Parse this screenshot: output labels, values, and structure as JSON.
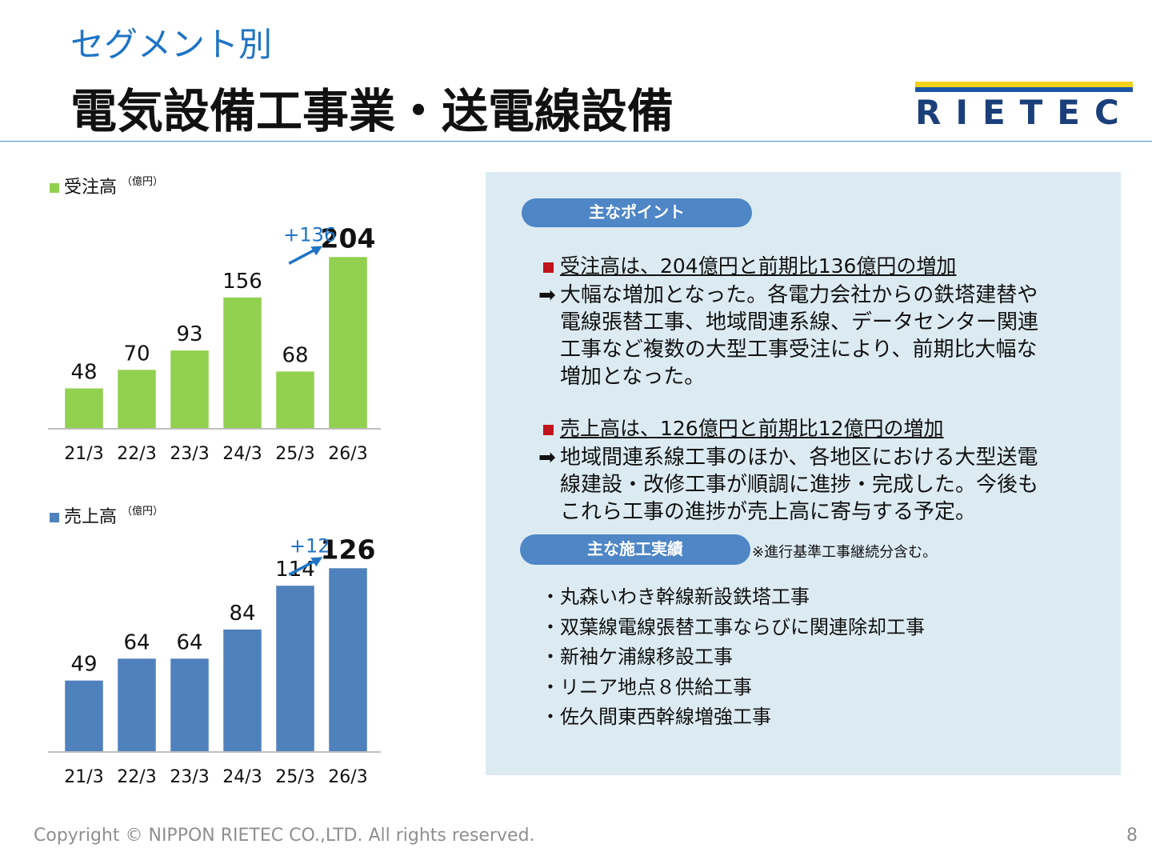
{
  "header": {
    "subtitle": "セグメント別",
    "title": "電気設備工事業・送電線設備",
    "logo_text": "RIETEC"
  },
  "colors": {
    "orders_bar": "#92d050",
    "sales_bar": "#4f81bd",
    "accent_blue": "#1f74c6",
    "pill": "#4e86c6",
    "panel_bg": "#dcebf2",
    "point_mark": "#c0131b",
    "logo_yellow": "#f2d21b",
    "logo_blue": "#1d55a5"
  },
  "chart_data": [
    {
      "type": "bar",
      "legend": "受注高",
      "unit": "（億円）",
      "categories": [
        "21/3",
        "22/3",
        "23/3",
        "24/3",
        "25/3",
        "26/3"
      ],
      "values": [
        48,
        70,
        93,
        156,
        68,
        204
      ],
      "ylim": [
        0,
        210
      ],
      "delta_label": "+136",
      "highlight_last": true
    },
    {
      "type": "bar",
      "legend": "売上高",
      "unit": "（億円）",
      "categories": [
        "21/3",
        "22/3",
        "23/3",
        "24/3",
        "25/3",
        "26/3"
      ],
      "values": [
        49,
        64,
        64,
        84,
        114,
        126
      ],
      "ylim": [
        0,
        130
      ],
      "delta_label": "+12",
      "highlight_last": true
    }
  ],
  "panel": {
    "points_label": "主なポイント",
    "point1": {
      "heading": "受注高は、204億円と前期比136億円の増加",
      "arrow": "➡",
      "lines": [
        "大幅な増加となった。各電力会社からの鉄塔建替や",
        "電線張替工事、地域間連系線、データセンター関連",
        "工事など複数の大型工事受注により、前期比大幅な",
        "増加となった。"
      ]
    },
    "point2": {
      "heading": "売上高は、126億円と前期比12億円の増加",
      "arrow": "➡",
      "lines": [
        "地域間連系線工事のほか、各地区における大型送電",
        "線建設・改修工事が順調に進捗・完成した。今後も",
        "これら工事の進捗が売上高に寄与する予定。"
      ]
    },
    "works_label": "主な施工実績",
    "works_note": "※進行基準工事継続分含む。",
    "works": [
      "・丸森いわき幹線新設鉄塔工事",
      "・双葉線電線張替工事ならびに関連除却工事",
      "・新袖ケ浦線移設工事",
      "・リニア地点８供給工事",
      "・佐久間東西幹線増強工事"
    ]
  },
  "footer": {
    "copyright": "Copyright © NIPPON RIETEC CO.,LTD. All rights reserved.",
    "page": "8"
  }
}
